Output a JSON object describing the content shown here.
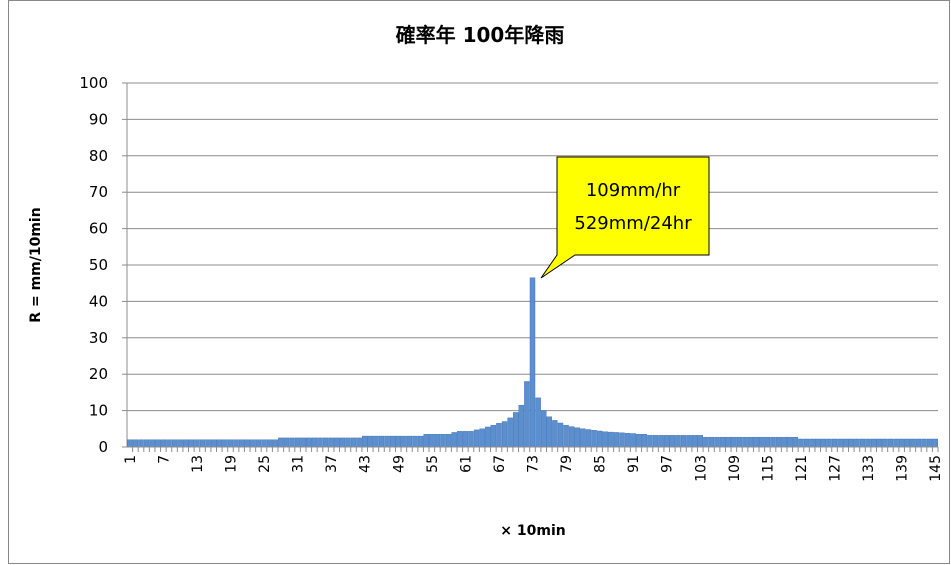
{
  "chart_data": {
    "type": "bar",
    "title": "確率年 100年降雨",
    "y_label": "R = mm/10min",
    "x_label": "× 10min",
    "annotations": [
      "109mm/hr",
      "529mm/24hr"
    ],
    "color": "#5b8fd0",
    "categories": [
      "1",
      null,
      null,
      null,
      null,
      null,
      "7",
      null,
      null,
      null,
      null,
      null,
      "13",
      null,
      null,
      null,
      null,
      null,
      "19",
      null,
      null,
      null,
      null,
      null,
      "25",
      null,
      null,
      null,
      null,
      null,
      "31",
      null,
      null,
      null,
      null,
      null,
      "37",
      null,
      null,
      null,
      null,
      null,
      "43",
      null,
      null,
      null,
      null,
      null,
      "49",
      null,
      null,
      null,
      null,
      null,
      "55",
      null,
      null,
      null,
      null,
      null,
      "61",
      null,
      null,
      null,
      null,
      null,
      "67",
      null,
      null,
      null,
      null,
      null,
      "73",
      null,
      null,
      null,
      null,
      null,
      "79",
      null,
      null,
      null,
      null,
      null,
      "85",
      null,
      null,
      null,
      null,
      null,
      "91",
      null,
      null,
      null,
      null,
      null,
      "97",
      null,
      null,
      null,
      null,
      null,
      "103",
      null,
      null,
      null,
      null,
      null,
      "109",
      null,
      null,
      null,
      null,
      null,
      "115",
      null,
      null,
      null,
      null,
      null,
      "121",
      null,
      null,
      null,
      null,
      null,
      "127",
      null,
      null,
      null,
      null,
      null,
      "133",
      null,
      null,
      null,
      null,
      null,
      "139",
      null,
      null,
      null,
      null,
      null,
      "145"
    ],
    "values": [
      2,
      2,
      2,
      2,
      2,
      2,
      2,
      2,
      2,
      2,
      2,
      2,
      2,
      2,
      2,
      2,
      2,
      2,
      2,
      2,
      2,
      2,
      2,
      2,
      2,
      2,
      2,
      2.5,
      2.5,
      2.5,
      2.5,
      2.5,
      2.5,
      2.5,
      2.5,
      2.5,
      2.5,
      2.5,
      2.5,
      2.5,
      2.5,
      2.5,
      3,
      3,
      3,
      3,
      3,
      3,
      3,
      3,
      3,
      3,
      3,
      3.5,
      3.5,
      3.5,
      3.5,
      3.5,
      4,
      4.3,
      4.3,
      4.3,
      4.7,
      5,
      5.5,
      6,
      6.5,
      7,
      8,
      9.5,
      11.5,
      18,
      46.5,
      13.5,
      10,
      8.3,
      7.3,
      6.6,
      6,
      5.6,
      5.3,
      5,
      4.8,
      4.6,
      4.4,
      4.2,
      4.1,
      4,
      3.9,
      3.8,
      3.7,
      3.5,
      3.5,
      3.2,
      3.2,
      3.2,
      3.2,
      3.2,
      3.2,
      3.2,
      3.2,
      3.2,
      3.2,
      2.7,
      2.7,
      2.7,
      2.7,
      2.7,
      2.7,
      2.7,
      2.7,
      2.7,
      2.7,
      2.7,
      2.7,
      2.7,
      2.7,
      2.7,
      2.7,
      2.7,
      2.2,
      2.2,
      2.2,
      2.2,
      2.2,
      2.2,
      2.2,
      2.2,
      2.2,
      2.2,
      2.2,
      2.2,
      2.2,
      2.2,
      2.2,
      2.2,
      2.2,
      2.2,
      2.2,
      2.2,
      2.2,
      2.2,
      2.2,
      2.2,
      2.2
    ],
    "ylim": [
      0,
      100
    ],
    "yticks": [
      0,
      10,
      20,
      30,
      40,
      50,
      60,
      70,
      80,
      90,
      100
    ],
    "grid": true
  }
}
